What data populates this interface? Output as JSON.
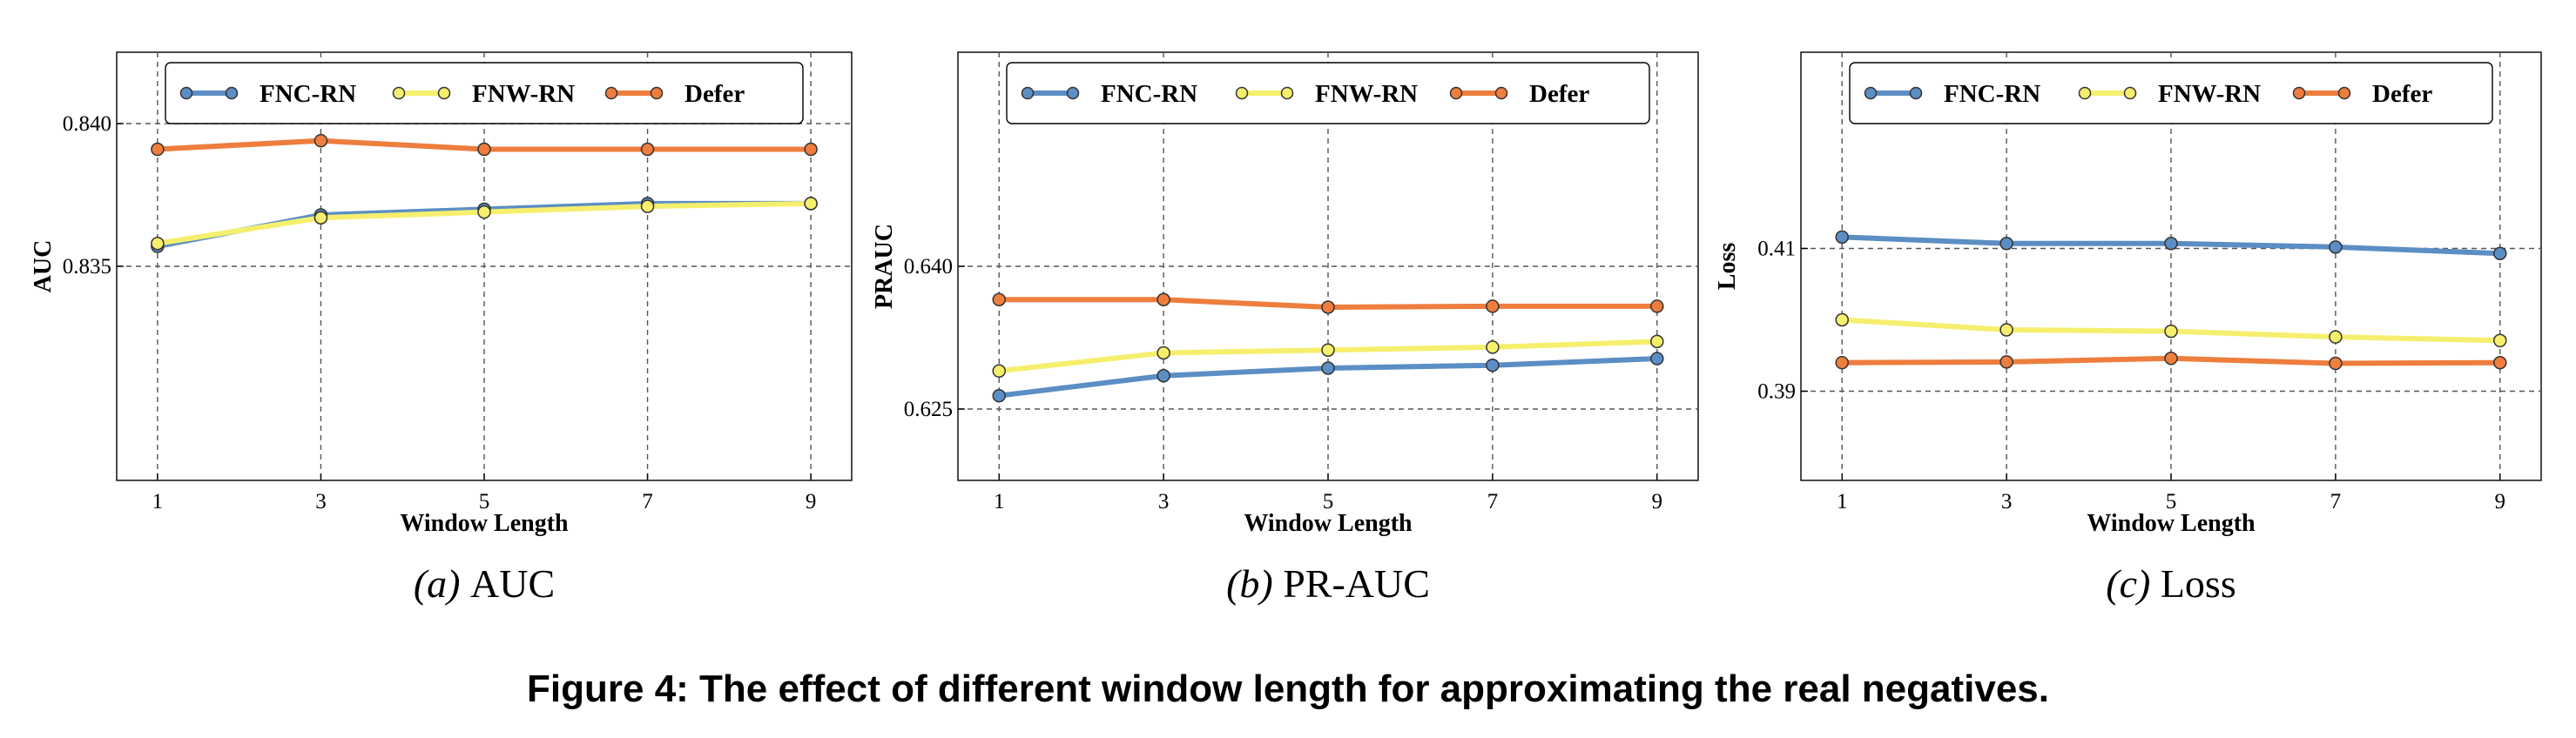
{
  "chart_data": [
    {
      "type": "line",
      "caption_label": "(a)",
      "caption_text": "AUC",
      "xlabel": "Window Length",
      "ylabel": "AUC",
      "x": [
        1,
        3,
        5,
        7,
        9
      ],
      "xlim": [
        0.5,
        9.5
      ],
      "ylim": [
        0.8275,
        0.8425
      ],
      "yticks": [
        0.835,
        0.84
      ],
      "ytick_labels": [
        "0.835",
        "0.840"
      ],
      "grid": true,
      "legend_position": "top",
      "series": [
        {
          "name": "FNC-RN",
          "color": "#5b8ec4",
          "values": [
            0.8357,
            0.8368,
            0.837,
            0.8372,
            0.8372
          ]
        },
        {
          "name": "FNW-RN",
          "color": "#f6ef6e",
          "values": [
            0.8358,
            0.8367,
            0.8369,
            0.8371,
            0.8372
          ]
        },
        {
          "name": "Defer",
          "color": "#ee7d3e",
          "values": [
            0.8391,
            0.8394,
            0.8391,
            0.8391,
            0.8391
          ]
        }
      ]
    },
    {
      "type": "line",
      "caption_label": "(b)",
      "caption_text": "PR-AUC",
      "xlabel": "Window Length",
      "ylabel": "PRAUC",
      "x": [
        1,
        3,
        5,
        7,
        9
      ],
      "xlim": [
        0.5,
        9.5
      ],
      "ylim": [
        0.6175,
        0.6625
      ],
      "yticks": [
        0.625,
        0.64
      ],
      "ytick_labels": [
        "0.625",
        "0.640"
      ],
      "grid": true,
      "legend_position": "top",
      "series": [
        {
          "name": "FNC-RN",
          "color": "#5b8ec4",
          "values": [
            0.6264,
            0.6285,
            0.6293,
            0.6296,
            0.6303
          ]
        },
        {
          "name": "FNW-RN",
          "color": "#f6ef6e",
          "values": [
            0.629,
            0.6309,
            0.6312,
            0.6315,
            0.6321
          ]
        },
        {
          "name": "Defer",
          "color": "#ee7d3e",
          "values": [
            0.6365,
            0.6365,
            0.6357,
            0.6358,
            0.6358
          ]
        }
      ]
    },
    {
      "type": "line",
      "caption_label": "(c)",
      "caption_text": "Loss",
      "xlabel": "Window Length",
      "ylabel": "Loss",
      "x": [
        1,
        3,
        5,
        7,
        9
      ],
      "xlim": [
        0.5,
        9.5
      ],
      "ylim": [
        0.3775,
        0.4375
      ],
      "yticks": [
        0.39,
        0.41
      ],
      "ytick_labels": [
        "0.39",
        "0.41"
      ],
      "grid": true,
      "legend_position": "top",
      "series": [
        {
          "name": "FNC-RN",
          "color": "#5b8ec4",
          "values": [
            0.4116,
            0.4107,
            0.4107,
            0.4102,
            0.4093
          ]
        },
        {
          "name": "FNW-RN",
          "color": "#f6ef6e",
          "values": [
            0.4,
            0.3986,
            0.3984,
            0.3976,
            0.3971
          ]
        },
        {
          "name": "Defer",
          "color": "#ee7d3e",
          "values": [
            0.394,
            0.3941,
            0.3946,
            0.3939,
            0.394
          ]
        }
      ]
    }
  ],
  "figure_caption": "Figure 4: The effect of different window length for approximating the real negatives."
}
